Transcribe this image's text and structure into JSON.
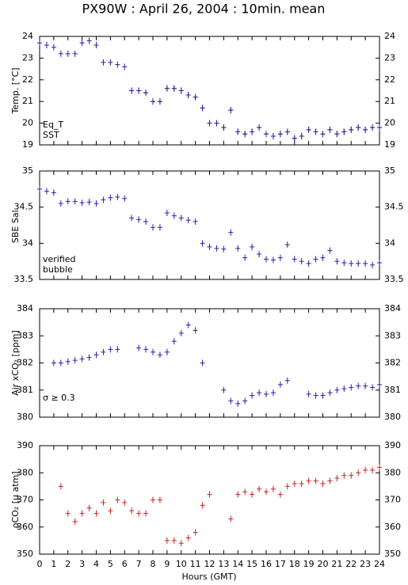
{
  "title": "PX90W : April 26, 2004 : 10min. mean",
  "xlabel": "Hours (GMT)",
  "chart_data": [
    {
      "type": "scatter",
      "ylabel": "Temp. [°C]",
      "x": [
        0,
        0.5,
        1,
        1.5,
        2,
        2.5,
        3,
        3.5,
        4,
        4.5,
        5,
        5.5,
        6,
        6.5,
        7,
        7.5,
        8,
        8.5,
        9,
        9.5,
        10,
        10.5,
        11,
        11.5,
        12,
        12.5,
        13,
        13.5,
        14,
        14.5,
        15,
        15.5,
        16,
        16.5,
        17,
        17.5,
        18,
        18.5,
        19,
        19.5,
        20,
        20.5,
        21,
        21.5,
        22,
        22.5,
        23,
        23.5,
        24
      ],
      "series": [
        {
          "name": "Eq_T",
          "color": "#cc2222",
          "values": [
            null,
            null,
            null,
            null,
            null,
            null,
            null,
            null,
            null,
            null,
            null,
            null,
            null,
            21.5,
            21.5,
            21.4,
            21.0,
            21.0,
            21.6,
            21.6,
            21.5,
            21.3,
            21.2,
            20.7,
            20.0,
            20.0,
            19.8,
            20.6,
            19.6,
            19.5,
            19.6,
            19.8,
            19.5,
            19.4,
            19.5,
            19.6,
            19.3,
            19.4,
            19.7,
            19.6,
            19.5,
            19.7,
            19.5,
            19.6,
            19.7,
            19.8,
            19.7,
            19.8,
            19.8
          ]
        },
        {
          "name": "SST",
          "color": "#2222aa",
          "values": [
            23.7,
            23.6,
            23.5,
            23.2,
            23.2,
            23.2,
            23.7,
            23.8,
            23.6,
            22.8,
            22.8,
            22.7,
            22.6,
            21.5,
            21.5,
            21.4,
            21.0,
            21.0,
            21.6,
            21.6,
            21.5,
            21.3,
            21.2,
            20.7,
            20.0,
            20.0,
            19.8,
            20.6,
            19.6,
            19.5,
            19.6,
            19.8,
            19.5,
            19.4,
            19.5,
            19.6,
            19.3,
            19.4,
            19.7,
            19.6,
            19.5,
            19.7,
            19.5,
            19.6,
            19.7,
            19.8,
            19.7,
            19.8,
            19.8
          ]
        }
      ],
      "xlim": [
        0,
        24
      ],
      "xticks": [
        0,
        1,
        2,
        3,
        4,
        5,
        6,
        7,
        8,
        9,
        10,
        11,
        12,
        13,
        14,
        15,
        16,
        17,
        18,
        19,
        20,
        21,
        22,
        23,
        24
      ],
      "ylim": [
        19,
        24
      ],
      "yticks": [
        19,
        20,
        21,
        22,
        23,
        24
      ],
      "show_xtick_labels": false
    },
    {
      "type": "scatter",
      "ylabel": "SBE Sal.",
      "x": [
        0,
        0.5,
        1,
        1.5,
        2,
        2.5,
        3,
        3.5,
        4,
        4.5,
        5,
        5.5,
        6,
        6.5,
        7,
        7.5,
        8,
        8.5,
        9,
        9.5,
        10,
        10.5,
        11,
        11.5,
        12,
        12.5,
        13,
        13.5,
        14,
        14.5,
        15,
        15.5,
        16,
        16.5,
        17,
        17.5,
        18,
        18.5,
        19,
        19.5,
        20,
        20.5,
        21,
        21.5,
        22,
        22.5,
        23,
        23.5,
        24
      ],
      "series": [
        {
          "name": "verified",
          "color": "#2222aa",
          "values": [
            34.75,
            34.72,
            34.7,
            34.55,
            34.58,
            34.58,
            34.56,
            34.57,
            34.55,
            34.6,
            34.63,
            34.64,
            34.62,
            34.35,
            34.33,
            34.3,
            34.22,
            34.22,
            34.42,
            34.38,
            34.35,
            34.32,
            34.3,
            34.0,
            33.95,
            33.93,
            33.92,
            34.15,
            33.93,
            33.8,
            33.95,
            33.85,
            33.78,
            33.77,
            33.8,
            33.98,
            33.78,
            33.75,
            33.72,
            33.78,
            33.8,
            33.9,
            33.75,
            33.73,
            33.72,
            33.72,
            33.72,
            33.7,
            33.73
          ]
        },
        {
          "name": "bubble",
          "color": "#cc33cc",
          "values": [
            null,
            null,
            null,
            null,
            null,
            null,
            null,
            null,
            null,
            null,
            null,
            null,
            null,
            null,
            null,
            null,
            null,
            null,
            null,
            null,
            null,
            null,
            null,
            null,
            null,
            null,
            null,
            null,
            null,
            null,
            null,
            null,
            null,
            null,
            null,
            null,
            null,
            null,
            null,
            null,
            null,
            null,
            null,
            null,
            null,
            null,
            null,
            null,
            null
          ]
        }
      ],
      "xlim": [
        0,
        24
      ],
      "xticks": [
        0,
        1,
        2,
        3,
        4,
        5,
        6,
        7,
        8,
        9,
        10,
        11,
        12,
        13,
        14,
        15,
        16,
        17,
        18,
        19,
        20,
        21,
        22,
        23,
        24
      ],
      "ylim": [
        33.5,
        35
      ],
      "yticks": [
        33.5,
        34,
        34.5,
        35
      ],
      "show_xtick_labels": false
    },
    {
      "type": "scatter",
      "ylabel": "Air xCO₂ [ppm]",
      "annotation": "σ ≥ 0.3",
      "annotation_color": "#cc33cc",
      "x": [
        0,
        0.5,
        1,
        1.5,
        2,
        2.5,
        3,
        3.5,
        4,
        4.5,
        5,
        5.5,
        6,
        6.5,
        7,
        7.5,
        8,
        8.5,
        9,
        9.5,
        10,
        10.5,
        11,
        11.5,
        12,
        12.5,
        13,
        13.5,
        14,
        14.5,
        15,
        15.5,
        16,
        16.5,
        17,
        17.5,
        18,
        18.5,
        19,
        19.5,
        20,
        20.5,
        21,
        21.5,
        22,
        22.5,
        23,
        23.5,
        24
      ],
      "series": [
        {
          "color": "#2222aa",
          "values": [
            null,
            null,
            382.0,
            382.0,
            382.05,
            382.1,
            382.15,
            382.2,
            382.3,
            382.4,
            382.5,
            382.5,
            null,
            null,
            382.55,
            382.5,
            382.4,
            382.3,
            382.4,
            382.8,
            383.1,
            383.4,
            383.2,
            382.0,
            null,
            null,
            381.0,
            380.6,
            380.5,
            380.6,
            380.8,
            380.9,
            380.85,
            380.9,
            381.2,
            381.35,
            null,
            null,
            380.85,
            380.8,
            380.8,
            380.9,
            381.0,
            381.05,
            381.1,
            381.15,
            381.15,
            381.1,
            381.2
          ]
        }
      ],
      "xlim": [
        0,
        24
      ],
      "xticks": [
        0,
        1,
        2,
        3,
        4,
        5,
        6,
        7,
        8,
        9,
        10,
        11,
        12,
        13,
        14,
        15,
        16,
        17,
        18,
        19,
        20,
        21,
        22,
        23,
        24
      ],
      "ylim": [
        380,
        384
      ],
      "yticks": [
        380,
        381,
        382,
        383,
        384
      ],
      "show_xtick_labels": false
    },
    {
      "type": "scatter",
      "ylabel": "ρCO₂ [μ atm]",
      "x": [
        0,
        0.5,
        1,
        1.5,
        2,
        2.5,
        3,
        3.5,
        4,
        4.5,
        5,
        5.5,
        6,
        6.5,
        7,
        7.5,
        8,
        8.5,
        9,
        9.5,
        10,
        10.5,
        11,
        11.5,
        12,
        12.5,
        13,
        13.5,
        14,
        14.5,
        15,
        15.5,
        16,
        16.5,
        17,
        17.5,
        18,
        18.5,
        19,
        19.5,
        20,
        20.5,
        21,
        21.5,
        22,
        22.5,
        23,
        23.5,
        24
      ],
      "series": [
        {
          "color": "#cc2222",
          "values": [
            null,
            null,
            null,
            375,
            365,
            362,
            365,
            367,
            365,
            369,
            366,
            370,
            369,
            366,
            365,
            365,
            370,
            370,
            355,
            355,
            354,
            356,
            358,
            368,
            372,
            null,
            null,
            363,
            372,
            373,
            372,
            374,
            373,
            374,
            372,
            375,
            376,
            376,
            377,
            377,
            376,
            377,
            378,
            379,
            379,
            380,
            381,
            381,
            382
          ]
        }
      ],
      "xlim": [
        0,
        24
      ],
      "xticks": [
        0,
        1,
        2,
        3,
        4,
        5,
        6,
        7,
        8,
        9,
        10,
        11,
        12,
        13,
        14,
        15,
        16,
        17,
        18,
        19,
        20,
        21,
        22,
        23,
        24
      ],
      "ylim": [
        350,
        390
      ],
      "yticks": [
        350,
        360,
        370,
        380,
        390
      ],
      "show_xtick_labels": true
    }
  ]
}
